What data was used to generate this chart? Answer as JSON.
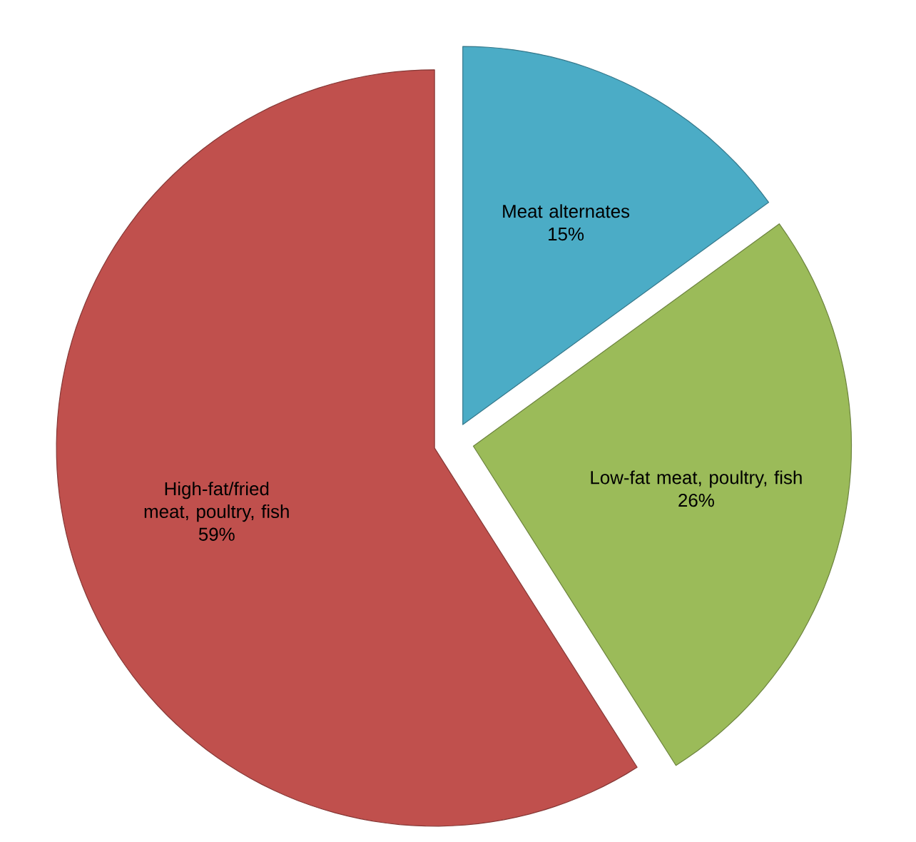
{
  "chart_data": {
    "type": "pie",
    "categories": [
      "Meat alternates",
      "Low-fat meat, poultry, fish",
      "High-fat/fried meat, poultry, fish"
    ],
    "values": [
      15,
      26,
      59
    ],
    "value_labels": [
      "15%",
      "26%",
      "59%"
    ],
    "colors": [
      "#4bacc6",
      "#9bbb59",
      "#c0504d"
    ]
  }
}
